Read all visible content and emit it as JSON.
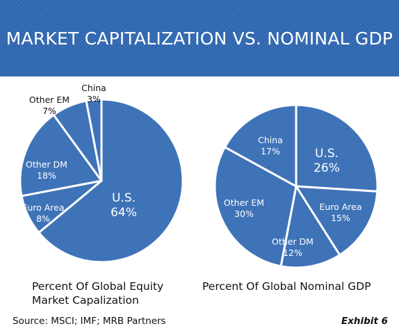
{
  "header": {
    "title": "MARKET CAPITALIZATION VS. NOMINAL GDP"
  },
  "colors": {
    "banner": "#2f66b0",
    "slice": "#3f73b8",
    "slice_edge": "#ffffff"
  },
  "chart_data": [
    {
      "type": "pie",
      "title_line1": "Percent Of Global Equity",
      "title_line2": "Market Capalization",
      "unit": "%",
      "slices": [
        {
          "label": "U.S.",
          "value": 64
        },
        {
          "label": "Euro Area",
          "value": 8
        },
        {
          "label": "Other DM",
          "value": 18
        },
        {
          "label": "Other EM",
          "value": 7
        },
        {
          "label": "China",
          "value": 3
        }
      ]
    },
    {
      "type": "pie",
      "title": "Percent Of Global Nominal GDP",
      "unit": "%",
      "slices": [
        {
          "label": "U.S.",
          "value": 26
        },
        {
          "label": "Euro Area",
          "value": 15
        },
        {
          "label": "Other DM",
          "value": 12
        },
        {
          "label": "Other EM",
          "value": 30
        },
        {
          "label": "China",
          "value": 17
        }
      ]
    }
  ],
  "footer": {
    "source": "Source: MSCI; IMF; MRB Partners",
    "exhibit": "Exhibit 6"
  }
}
